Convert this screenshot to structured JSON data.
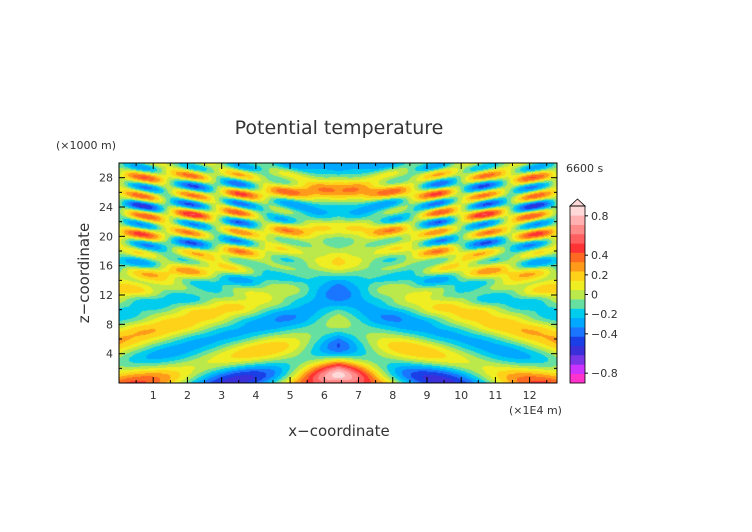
{
  "chart_data": {
    "type": "heatmap",
    "title": "Potential temperature",
    "xlabel": "x−coordinate",
    "ylabel": "z−coordinate",
    "x_unit": "(×1E4 m)",
    "y_unit": "(×1000 m)",
    "time_label": "6600 s",
    "xlim": [
      0,
      12.8
    ],
    "ylim": [
      0,
      30
    ],
    "x_ticks": [
      "1",
      "2",
      "3",
      "4",
      "5",
      "6",
      "7",
      "8",
      "9",
      "10",
      "11",
      "12"
    ],
    "y_ticks": [
      "4",
      "8",
      "12",
      "16",
      "20",
      "24",
      "28"
    ],
    "colorbar": {
      "levels": [
        -0.9,
        -0.8,
        -0.7,
        -0.6,
        -0.5,
        -0.4,
        -0.3,
        -0.2,
        -0.1,
        0,
        0.1,
        0.2,
        0.3,
        0.4,
        0.5,
        0.6,
        0.7,
        0.8,
        0.9
      ],
      "colors": [
        "#ff33cc",
        "#cc33ff",
        "#7a35e6",
        "#3a2fd8",
        "#1a3fe6",
        "#1a75ff",
        "#00a8ff",
        "#00ccee",
        "#66e0a0",
        "#bbe84a",
        "#eeee22",
        "#ffd21a",
        "#ff9b1a",
        "#ff6a22",
        "#ff3333",
        "#ff5f5f",
        "#ff8a8a",
        "#ffb0b0",
        "#ffd8d8"
      ],
      "tick_labels": [
        "0.8",
        "0.4",
        "0.2",
        "0",
        "−0.2",
        "−0.4",
        "−0.8"
      ],
      "tick_values": [
        0.8,
        0.4,
        0.2,
        0,
        -0.2,
        -0.4,
        -0.8
      ],
      "extend": "max"
    }
  }
}
